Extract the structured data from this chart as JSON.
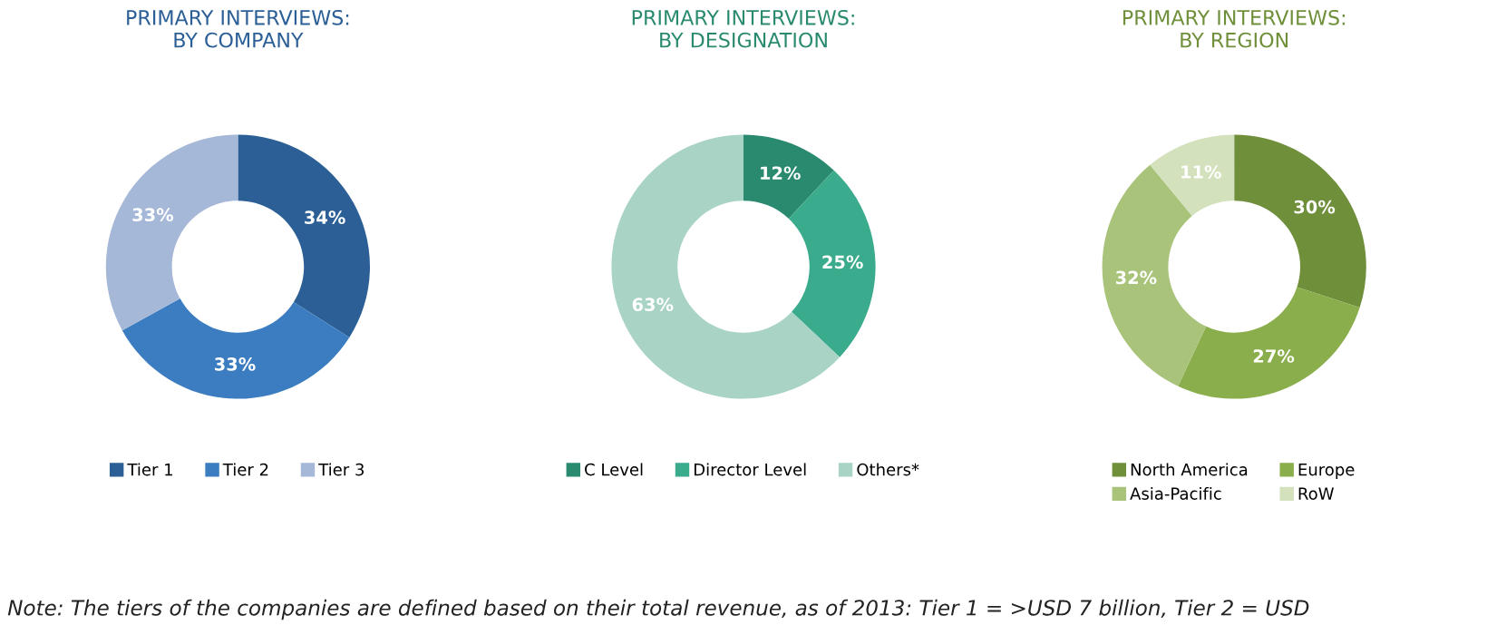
{
  "chart_data": [
    {
      "type": "donut",
      "title": "PRIMARY INTERVIEWS:\nBY COMPANY",
      "categories": [
        "Tier 1",
        "Tier 2",
        "Tier 3"
      ],
      "values": [
        34,
        33,
        33
      ],
      "value_labels": [
        "34%",
        "33%",
        "33%"
      ],
      "colors": [
        "#2b5f96",
        "#3b7dc0",
        "#a6b8d8"
      ],
      "legend": "bottom",
      "annotations": [
        "Note: The tiers of the companies are defined based on their total revenue, as of 2013: Tier 1 = >USD 7 billion, Tier 2 = USD"
      ]
    },
    {
      "type": "donut",
      "title": "PRIMARY INTERVIEWS:\nBY DESIGNATION",
      "categories": [
        "C Level",
        "Director Level",
        "Others*"
      ],
      "values": [
        12,
        25,
        63
      ],
      "value_labels": [
        "12%",
        "25%",
        "63%"
      ],
      "colors": [
        "#2a8a6f",
        "#3aab8c",
        "#a9d3c5"
      ],
      "legend": "bottom"
    },
    {
      "type": "donut",
      "title": "PRIMARY INTERVIEWS:\nBY REGION",
      "categories": [
        "North America",
        "Europe",
        "Asia-Pacific",
        "RoW"
      ],
      "values": [
        30,
        27,
        32,
        11
      ],
      "value_labels": [
        "30%",
        "27%",
        "32%",
        "11%"
      ],
      "colors": [
        "#6f8f3a",
        "#8aae4b",
        "#a9c47a",
        "#d3e1bd"
      ],
      "legend": "bottom"
    }
  ]
}
